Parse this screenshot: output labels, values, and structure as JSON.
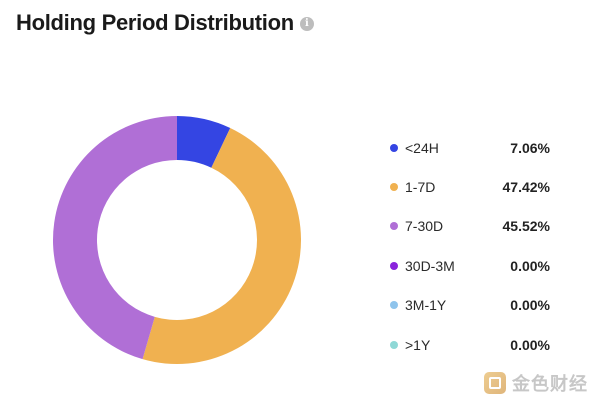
{
  "title": "Holding Period Distribution",
  "info_icon": "info-icon",
  "watermark_text": "金色财经",
  "chart_data": {
    "type": "pie",
    "title": "Holding Period Distribution",
    "donut": true,
    "legend_position": "right",
    "categories": [
      "<24H",
      "1-7D",
      "7-30D",
      "30D-3M",
      "3M-1Y",
      ">1Y"
    ],
    "values": [
      7.06,
      47.42,
      45.52,
      0.0,
      0.0,
      0.0
    ],
    "value_labels": [
      "7.06%",
      "47.42%",
      "45.52%",
      "0.00%",
      "0.00%",
      "0.00%"
    ],
    "colors": [
      "#3445e3",
      "#f0b150",
      "#b06fd6",
      "#8a24dc",
      "#8fc4ec",
      "#8fd8d6"
    ]
  }
}
